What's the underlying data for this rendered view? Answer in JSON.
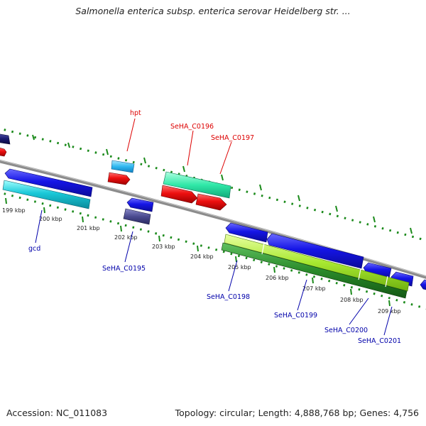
{
  "title": "Salmonella enterica subsp. enterica serovar Heidelberg str. ...",
  "footer": {
    "accession": "Accession: NC_011083",
    "topology": "Topology: circular; Length: 4,888,768 bp; Genes: 4,756"
  },
  "colors": {
    "backbone": "#8c8c8c",
    "scale_ticks": "#1a8a1a",
    "forward_gene": "#1010e0",
    "reverse_gene": "#e01010",
    "label_blue": "#0000aa",
    "label_red": "#dd0000"
  },
  "scale_ticks": [
    "199 kbp",
    "200 kbp",
    "201 kbp",
    "202 kbp",
    "203 kbp",
    "204 kbp",
    "205 kbp",
    "206 kbp",
    "207 kbp",
    "208 kbp",
    "209 kbp"
  ],
  "gene_labels": {
    "top": [
      "hpt",
      "SeHA_C0196",
      "SeHA_C0197"
    ],
    "bottom": [
      "gcd",
      "SeHA_C0195",
      "SeHA_C0198",
      "SeHA_C0199",
      "SeHA_C0200",
      "SeHA_C0201"
    ]
  }
}
